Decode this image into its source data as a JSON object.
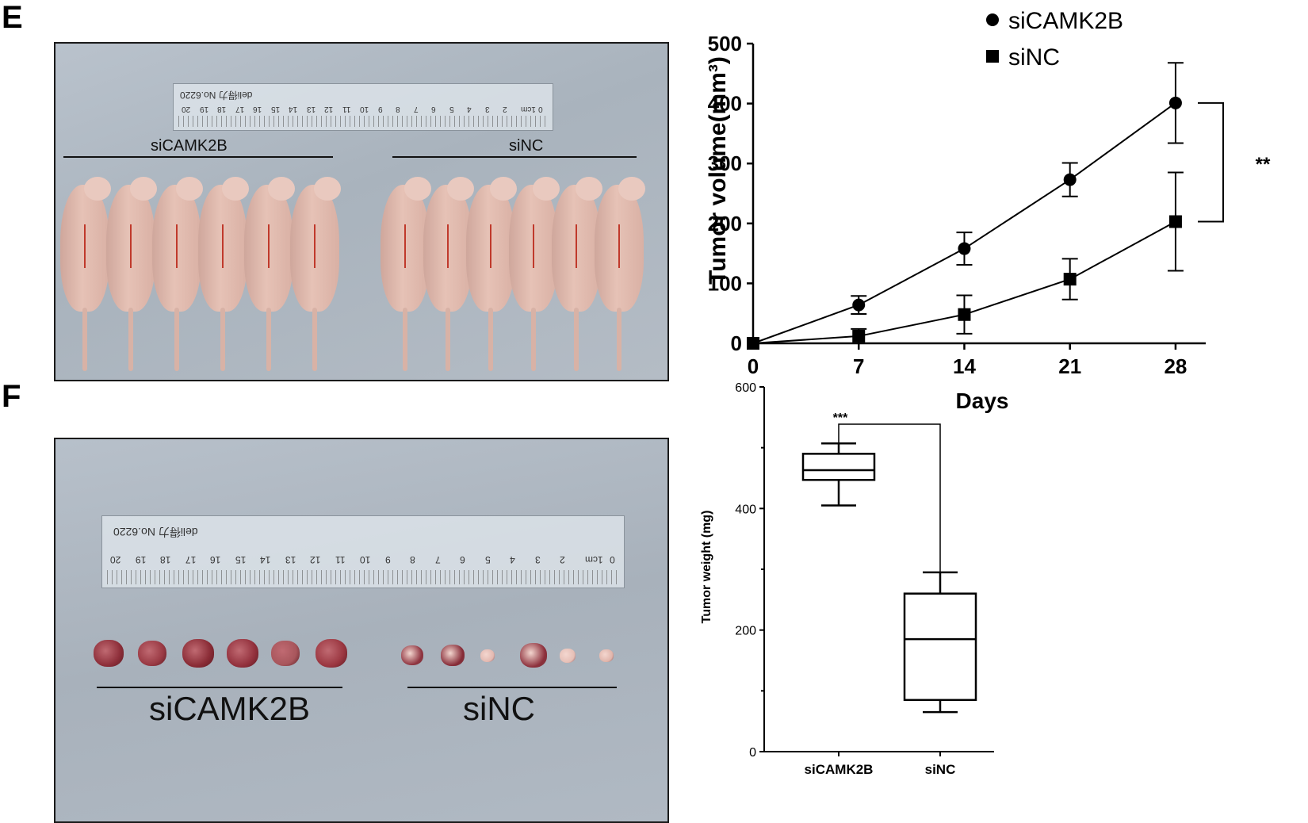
{
  "panels": {
    "e_letter": "E",
    "f_letter": "F"
  },
  "photo_e": {
    "left_label": "siCAMK2B",
    "right_label": "siNC",
    "ruler_brand": "deli得力 No.6220",
    "ruler_numbers": [
      "20",
      "19",
      "18",
      "17",
      "16",
      "15",
      "14",
      "13",
      "12",
      "11",
      "10",
      "9",
      "8",
      "7",
      "6",
      "5",
      "4",
      "3",
      "2",
      "1cm",
      "0"
    ],
    "mice_left": 6,
    "mice_right": 6
  },
  "photo_f": {
    "left_label": "siCAMK2B",
    "right_label": "siNC",
    "ruler_brand": "deli得力 No.6220",
    "ruler_numbers": [
      "20",
      "19",
      "18",
      "17",
      "16",
      "15",
      "14",
      "13",
      "12",
      "11",
      "10",
      "9",
      "8",
      "7",
      "6",
      "5",
      "4",
      "3",
      "2",
      "1cm",
      "0"
    ],
    "tumors_left": [
      {
        "color": "#8e2f3a"
      },
      {
        "color": "#9a3a44"
      },
      {
        "color": "#8a2c36"
      },
      {
        "color": "#93313d"
      },
      {
        "color": "#a8565c"
      },
      {
        "color": "#9b3741"
      }
    ],
    "tumors_right": [
      {
        "color": "#8f3440"
      },
      {
        "color": "#862b37"
      },
      {
        "color": "#e3b8b0"
      },
      {
        "color": "#8c2f3b"
      },
      {
        "color": "#e6bfb6"
      },
      {
        "color": "#e0b4aa"
      }
    ]
  },
  "chart_data": [
    {
      "type": "line",
      "title": "",
      "xlabel": "Days",
      "ylabel": "Tumor volume(mm³)",
      "x": [
        0,
        7,
        14,
        21,
        28
      ],
      "xlim": [
        0,
        30
      ],
      "ylim": [
        0,
        500
      ],
      "xticks": [
        "0",
        "7",
        "14",
        "21",
        "28"
      ],
      "yticks": [
        "0",
        "100",
        "200",
        "300",
        "400",
        "500"
      ],
      "series": [
        {
          "name": "siCAMK2B",
          "marker": "circle",
          "values": [
            0,
            64,
            158,
            273,
            401
          ],
          "err": [
            0,
            15,
            27,
            28,
            67
          ]
        },
        {
          "name": "siNC",
          "marker": "square",
          "values": [
            0,
            12,
            48,
            107,
            203
          ],
          "err": [
            0,
            12,
            32,
            34,
            82
          ]
        }
      ],
      "significance": "**"
    },
    {
      "type": "box",
      "title": "",
      "xlabel": "",
      "ylabel": "Tumor weight (mg)",
      "ylim": [
        0,
        600
      ],
      "yticks": [
        "0",
        "200",
        "400",
        "600"
      ],
      "categories": [
        "siCAMK2B",
        "siNC"
      ],
      "boxes": [
        {
          "name": "siCAMK2B",
          "min": 405,
          "q1": 447,
          "median": 463,
          "q3": 490,
          "max": 507
        },
        {
          "name": "siNC",
          "min": 65,
          "q1": 85,
          "median": 185,
          "q3": 260,
          "max": 295
        }
      ],
      "significance": "***"
    }
  ]
}
